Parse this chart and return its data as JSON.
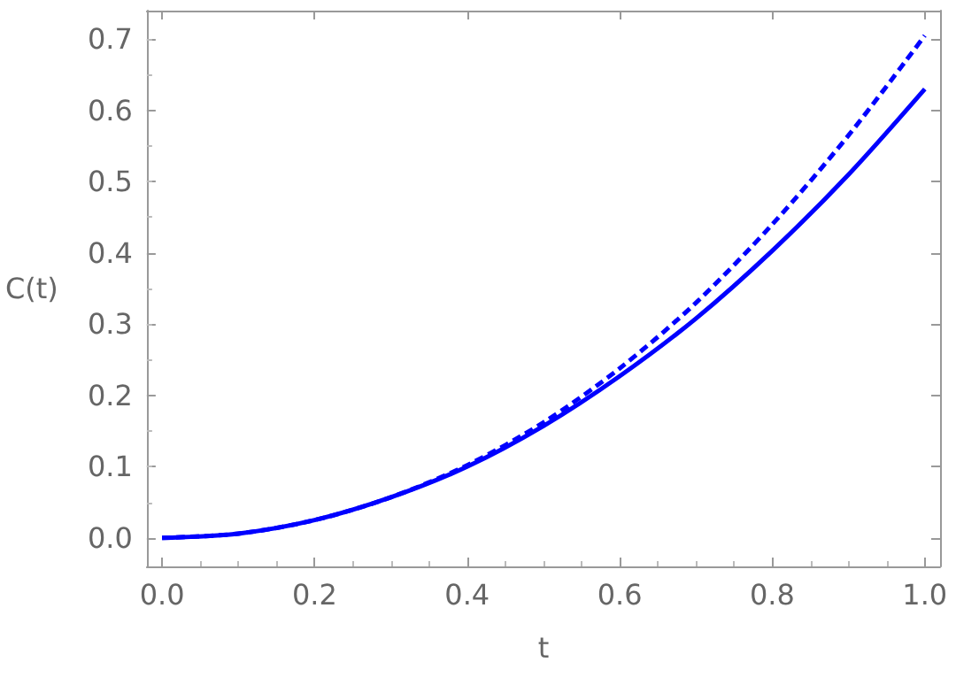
{
  "chart_data": {
    "type": "line",
    "xlabel": "t",
    "ylabel": "C(t)",
    "xlim": [
      -0.02,
      1.02
    ],
    "xticks": [
      {
        "value": 0,
        "label": "0.0"
      },
      0.2,
      0.4,
      0.6,
      0.8,
      {
        "value": 1,
        "label": "1.0"
      }
    ],
    "ylim": [
      -0.04,
      0.74
    ],
    "yticks": [
      {
        "value": 0,
        "label": "0.0"
      },
      0.1,
      0.2,
      0.3,
      0.4,
      0.5,
      0.6,
      0.7
    ],
    "x": [
      0,
      0.1,
      0.2,
      0.3,
      0.4,
      0.5,
      0.6,
      0.7,
      0.8,
      0.9,
      1.0
    ],
    "series": [
      {
        "color": "#0000ff",
        "line_style": "solid",
        "values": [
          0,
          0.006,
          0.025,
          0.057,
          0.1,
          0.157,
          0.227,
          0.308,
          0.403,
          0.51,
          0.63
        ]
      },
      {
        "color": "#0000ff",
        "line_style": "dashed",
        "values": [
          0,
          0.006,
          0.025,
          0.057,
          0.102,
          0.162,
          0.238,
          0.33,
          0.44,
          0.565,
          0.705
        ]
      }
    ],
    "grid": false,
    "marker": "none"
  }
}
